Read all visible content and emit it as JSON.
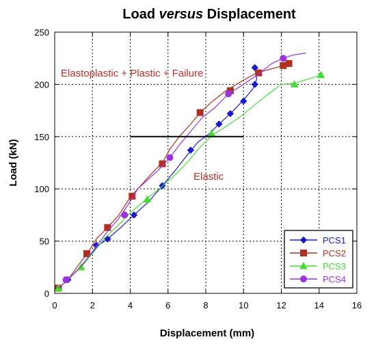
{
  "chart_data": {
    "type": "line",
    "title_parts": [
      {
        "text": "Load ",
        "italic": false
      },
      {
        "text": "versus",
        "italic": true
      },
      {
        "text": " Displacement",
        "italic": false
      }
    ],
    "title": "Load versus Displacement",
    "xlabel": "Displacement (mm)",
    "ylabel": "Load (kN)",
    "xlim": [
      0,
      16
    ],
    "ylim": [
      0,
      250
    ],
    "xticks": [
      0,
      2,
      4,
      6,
      8,
      10,
      12,
      14,
      16
    ],
    "yticks": [
      0,
      50,
      100,
      150,
      200,
      250
    ],
    "grid": true,
    "legend_position": "bottom-right",
    "series": [
      {
        "name": "PCS1",
        "color": "#1a1acc",
        "marker": "diamond",
        "line": [
          [
            0.2,
            5
          ],
          [
            0.7,
            13
          ],
          [
            1.2,
            22
          ],
          [
            1.8,
            35
          ],
          [
            2.3,
            46
          ],
          [
            2.8,
            52
          ],
          [
            3.5,
            63
          ],
          [
            4.2,
            75
          ],
          [
            5.0,
            88
          ],
          [
            5.7,
            103
          ],
          [
            6.4,
            118
          ],
          [
            7.0,
            132
          ],
          [
            7.6,
            145
          ],
          [
            8.2,
            153
          ],
          [
            8.7,
            162
          ],
          [
            9.3,
            172
          ],
          [
            10.0,
            185
          ],
          [
            10.5,
            196
          ],
          [
            10.7,
            205
          ],
          [
            10.6,
            215
          ],
          [
            10.5,
            218
          ]
        ],
        "markers": [
          [
            0.2,
            5
          ],
          [
            0.7,
            13
          ],
          [
            2.2,
            46
          ],
          [
            2.8,
            52
          ],
          [
            4.2,
            75
          ],
          [
            5.7,
            103
          ],
          [
            7.2,
            137
          ],
          [
            8.7,
            162
          ],
          [
            9.3,
            172
          ],
          [
            10.0,
            184
          ],
          [
            10.6,
            200
          ],
          [
            10.6,
            216
          ]
        ]
      },
      {
        "name": "PCS2",
        "color": "#b03020",
        "marker": "square",
        "line": [
          [
            0.2,
            5
          ],
          [
            0.7,
            13
          ],
          [
            1.3,
            28
          ],
          [
            1.8,
            40
          ],
          [
            2.2,
            52
          ],
          [
            2.8,
            63
          ],
          [
            3.4,
            75
          ],
          [
            4.0,
            92
          ],
          [
            4.6,
            104
          ],
          [
            5.2,
            116
          ],
          [
            5.7,
            125
          ],
          [
            6.1,
            138
          ],
          [
            6.6,
            150
          ],
          [
            7.2,
            162
          ],
          [
            7.7,
            173
          ],
          [
            8.3,
            183
          ],
          [
            9.0,
            193
          ],
          [
            9.8,
            202
          ],
          [
            10.7,
            211
          ],
          [
            11.5,
            215
          ],
          [
            12.1,
            218
          ],
          [
            12.4,
            220
          ]
        ],
        "markers": [
          [
            0.2,
            5
          ],
          [
            1.7,
            38
          ],
          [
            2.8,
            63
          ],
          [
            4.1,
            93
          ],
          [
            5.7,
            124
          ],
          [
            7.7,
            173
          ],
          [
            9.3,
            194
          ],
          [
            10.8,
            211
          ],
          [
            12.1,
            218
          ],
          [
            12.4,
            220
          ]
        ]
      },
      {
        "name": "PCS3",
        "color": "#44dd33",
        "marker": "triangle",
        "line": [
          [
            0.2,
            5
          ],
          [
            0.7,
            13
          ],
          [
            1.4,
            25
          ],
          [
            2.0,
            38
          ],
          [
            2.6,
            52
          ],
          [
            3.3,
            64
          ],
          [
            4.0,
            77
          ],
          [
            4.9,
            91
          ],
          [
            5.6,
            101
          ],
          [
            6.3,
            112
          ],
          [
            7.0,
            125
          ],
          [
            7.7,
            140
          ],
          [
            8.4,
            152
          ],
          [
            9.1,
            160
          ],
          [
            9.9,
            170
          ],
          [
            10.7,
            182
          ],
          [
            11.4,
            192
          ],
          [
            12.0,
            200
          ],
          [
            12.7,
            201
          ],
          [
            13.4,
            205
          ],
          [
            14.1,
            209
          ]
        ],
        "markers": [
          [
            0.2,
            5
          ],
          [
            1.4,
            25
          ],
          [
            4.9,
            90
          ],
          [
            8.3,
            153
          ],
          [
            12.7,
            200
          ],
          [
            14.1,
            209
          ]
        ]
      },
      {
        "name": "PCS4",
        "color": "#9933dd",
        "marker": "circle",
        "line": [
          [
            0.2,
            5
          ],
          [
            0.7,
            13
          ],
          [
            1.4,
            26
          ],
          [
            2.0,
            40
          ],
          [
            2.7,
            57
          ],
          [
            3.4,
            72
          ],
          [
            3.9,
            85
          ],
          [
            4.4,
            100
          ],
          [
            5.0,
            110
          ],
          [
            5.5,
            118
          ],
          [
            6.1,
            130
          ],
          [
            6.6,
            142
          ],
          [
            7.2,
            155
          ],
          [
            7.8,
            168
          ],
          [
            8.5,
            178
          ],
          [
            9.2,
            191
          ],
          [
            10.0,
            200
          ],
          [
            10.8,
            210
          ],
          [
            11.5,
            220
          ],
          [
            12.1,
            225
          ],
          [
            12.6,
            228
          ],
          [
            13.3,
            230
          ]
        ],
        "markers": [
          [
            0.6,
            13
          ],
          [
            3.7,
            75
          ],
          [
            6.1,
            130
          ],
          [
            9.2,
            191
          ],
          [
            12.1,
            225
          ]
        ]
      }
    ],
    "reference_line": {
      "y": 150,
      "x_start": 4.0,
      "x_end": 10.0,
      "color": "#000000"
    },
    "annotations": [
      {
        "text": "Elastoplastic + Plastic + Failure",
        "color": "#c0302a"
      },
      {
        "text": "Elastic",
        "color": "#c0302a"
      }
    ]
  }
}
